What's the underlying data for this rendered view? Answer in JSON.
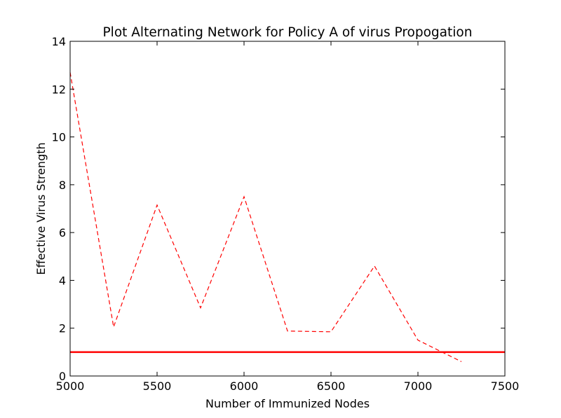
{
  "chart_data": {
    "type": "line",
    "title": "Plot Alternating Network for Policy A of virus Propogation",
    "xlabel": "Number of Immunized Nodes",
    "ylabel": "Effective Virus Strength",
    "xlim": [
      5000,
      7500
    ],
    "ylim": [
      0,
      14
    ],
    "xticks": [
      5000,
      5500,
      6000,
      6500,
      7000,
      7500
    ],
    "yticks": [
      0,
      2,
      4,
      6,
      8,
      10,
      12,
      14
    ],
    "grid": false,
    "legend": "none",
    "series": [
      {
        "style": "dashed",
        "color": "#ff0000",
        "x": [
          5000,
          5250,
          5500,
          5750,
          6000,
          6250,
          6500,
          6750,
          7000,
          7250
        ],
        "y": [
          12.7,
          2.05,
          7.15,
          2.85,
          7.5,
          1.88,
          1.85,
          4.6,
          1.5,
          0.6
        ]
      },
      {
        "style": "solid",
        "color": "#ff0000",
        "x": [
          5000,
          7500
        ],
        "y": [
          1,
          1
        ]
      }
    ]
  }
}
